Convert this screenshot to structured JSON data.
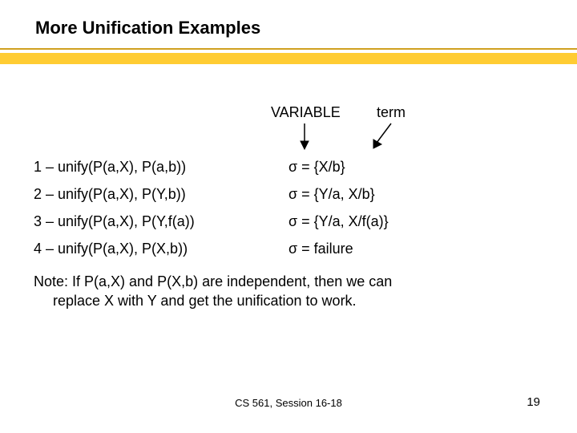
{
  "title": {
    "text": "More Unification Examples",
    "fontsize": 22
  },
  "underline": {
    "thick_color": "#ffcc33",
    "thick_height": 14,
    "thin_color": "#d0a020",
    "thin_height": 2
  },
  "header": {
    "variable_label": "VARIABLE",
    "term_label": "term",
    "fontsize": 18
  },
  "rows_fontsize": 18,
  "rows": [
    {
      "lhs": "1 – unify(P(a,X), P(a,b))",
      "rhs": "σ = {X/b}"
    },
    {
      "lhs": "2 – unify(P(a,X), P(Y,b))",
      "rhs": "σ = {Y/a, X/b}"
    },
    {
      "lhs": "3 – unify(P(a,X), P(Y,f(a))",
      "rhs": "σ = {Y/a, X/f(a)}"
    },
    {
      "lhs": "4 – unify(P(a,X), P(X,b))",
      "rhs": "σ = failure"
    }
  ],
  "note": {
    "line1": "Note: If P(a,X) and P(X,b) are independent, then we can",
    "line2": "replace X with Y and get the unification to work.",
    "fontsize": 18
  },
  "footer": {
    "text": "CS 561, Session 16-18",
    "fontsize": 13,
    "color": "#000000"
  },
  "page_number": {
    "text": "19",
    "fontsize": 15,
    "color": "#000000"
  },
  "colors": {
    "text": "#000000",
    "background": "#ffffff"
  }
}
